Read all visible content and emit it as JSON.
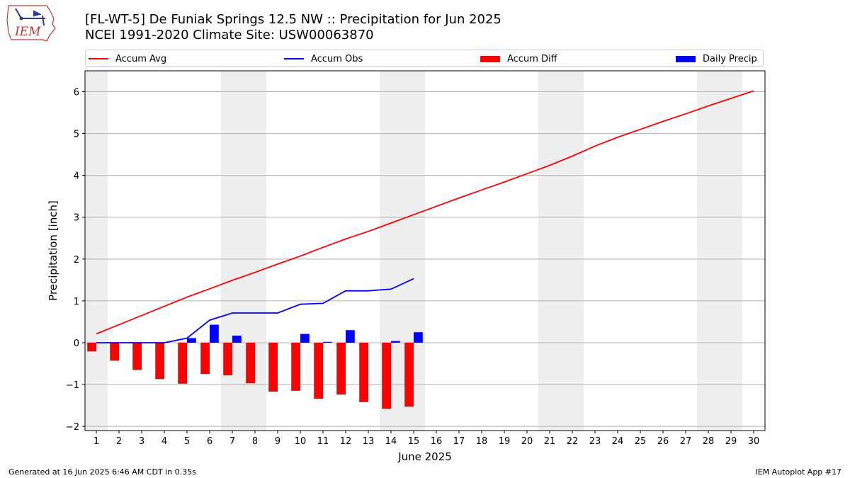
{
  "header": {
    "title_line1": "[FL-WT-5] De Funiak Springs 12.5 NW :: Precipitation for Jun 2025",
    "title_line2": "NCEI 1991-2020 Climate Site: USW00063870",
    "logo_text": "IEM"
  },
  "legend": {
    "position": "top, spanning full width above plot",
    "items": [
      {
        "label": "Accum Avg",
        "type": "line",
        "color": "#ff0000"
      },
      {
        "label": "Accum Obs",
        "type": "line",
        "color": "#0000ff"
      },
      {
        "label": "Accum Diff",
        "type": "bar",
        "color": "#ff0000"
      },
      {
        "label": "Daily Precip",
        "type": "bar",
        "color": "#0000ff"
      }
    ]
  },
  "footer": {
    "left": "Generated at 16 Jun 2025 6:46 AM CDT in 0.35s",
    "right": "IEM Autoplot App #17"
  },
  "chart_data": {
    "type": "bar",
    "xlabel": "June 2025",
    "ylabel": "Precipitation [inch]",
    "xlim": [
      0.5,
      30.5
    ],
    "ylim": [
      -2.1,
      6.5
    ],
    "x_ticks": [
      1,
      2,
      3,
      4,
      5,
      6,
      7,
      8,
      9,
      10,
      11,
      12,
      13,
      14,
      15,
      16,
      17,
      18,
      19,
      20,
      21,
      22,
      23,
      24,
      25,
      26,
      27,
      28,
      29,
      30
    ],
    "y_ticks": [
      -2,
      -1,
      0,
      1,
      2,
      3,
      4,
      5,
      6
    ],
    "y_tick_labels": [
      "−2",
      "−1",
      "0",
      "1",
      "2",
      "3",
      "4",
      "5",
      "6"
    ],
    "grid": "horizontal",
    "weekend_shading": [
      [
        0.5,
        1.5
      ],
      [
        6.5,
        8.5
      ],
      [
        13.5,
        15.5
      ],
      [
        20.5,
        22.5
      ],
      [
        27.5,
        29.5
      ]
    ],
    "colors": {
      "avg": "#ff0000",
      "obs": "#0000ff",
      "shade": "#eeeeee",
      "grid": "#b0b0b0"
    },
    "accum_avg": {
      "x": [
        1,
        2,
        3,
        4,
        5,
        6,
        7,
        8,
        9,
        10,
        11,
        12,
        13,
        14,
        15,
        16,
        17,
        18,
        19,
        20,
        21,
        22,
        23,
        24,
        25,
        26,
        27,
        28,
        29,
        30
      ],
      "y": [
        0.21,
        0.43,
        0.65,
        0.87,
        1.09,
        1.29,
        1.49,
        1.68,
        1.88,
        2.07,
        2.28,
        2.48,
        2.66,
        2.86,
        3.06,
        3.26,
        3.46,
        3.65,
        3.84,
        4.04,
        4.24,
        4.46,
        4.7,
        4.91,
        5.1,
        5.29,
        5.47,
        5.66,
        5.84,
        6.02
      ]
    },
    "accum_obs": {
      "x": [
        1,
        2,
        3,
        4,
        5,
        6,
        7,
        8,
        9,
        10,
        11,
        12,
        13,
        14,
        15
      ],
      "y": [
        0.0,
        0.0,
        0.0,
        0.0,
        0.11,
        0.54,
        0.71,
        0.71,
        0.71,
        0.92,
        0.94,
        1.24,
        1.24,
        1.28,
        1.53
      ]
    },
    "accum_diff": {
      "x": [
        1,
        2,
        3,
        4,
        5,
        6,
        7,
        8,
        9,
        10,
        11,
        12,
        13,
        14,
        15
      ],
      "y": [
        -0.21,
        -0.43,
        -0.65,
        -0.87,
        -0.98,
        -0.75,
        -0.78,
        -0.97,
        -1.17,
        -1.15,
        -1.34,
        -1.24,
        -1.42,
        -1.58,
        -1.53
      ]
    },
    "daily_precip": {
      "x": [
        1,
        2,
        3,
        4,
        5,
        6,
        7,
        8,
        9,
        10,
        11,
        12,
        13,
        14,
        15
      ],
      "y": [
        0.0,
        0.0,
        0.0,
        0.0,
        0.11,
        0.43,
        0.17,
        0.0,
        0.0,
        0.21,
        0.02,
        0.3,
        0.0,
        0.04,
        0.25
      ]
    }
  }
}
